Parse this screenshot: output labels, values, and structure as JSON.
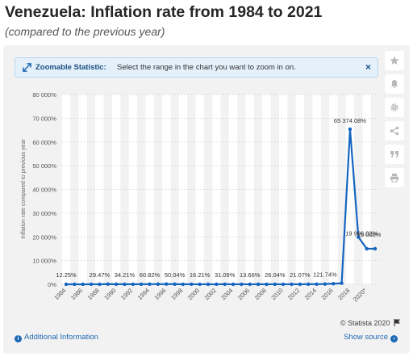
{
  "page": {
    "title": "Venezuela: Inflation rate from 1984 to 2021",
    "subtitle": "(compared to the previous year)"
  },
  "zoom_bar": {
    "label": "Zoomable Statistic:",
    "text": "Select the range in the chart you want to zoom in on.",
    "close": "×"
  },
  "side_tools": [
    "star-icon",
    "bell-icon",
    "gear-icon",
    "share-icon",
    "quote-icon",
    "print-icon"
  ],
  "footer": {
    "additional_info": "Additional Information",
    "show_source": "Show source",
    "credit": "© Statista 2020"
  },
  "colors": {
    "series": "#1565c0",
    "card": "#f2f2f2",
    "stripe": "#ffffff",
    "link": "#1c67b3"
  },
  "chart_data": {
    "type": "line",
    "title": "",
    "xlabel": "",
    "ylabel": "Inflation rate compared to previous year",
    "ylim": [
      0,
      80000
    ],
    "yticks": [
      0,
      10000,
      20000,
      30000,
      40000,
      50000,
      60000,
      70000,
      80000
    ],
    "ytick_labels": [
      "0%",
      "10 000%",
      "20 000%",
      "30 000%",
      "40 000%",
      "50 000%",
      "60 000%",
      "70 000%",
      "80 000%"
    ],
    "xtick_labels": [
      "1984",
      "1986",
      "1988",
      "1990",
      "1992",
      "1994",
      "1996",
      "1998",
      "2000",
      "2002",
      "2004",
      "2006",
      "2008",
      "2010",
      "2012",
      "2014",
      "2016",
      "2018",
      "2020*"
    ],
    "grid": true,
    "series": [
      {
        "x": [
          1984,
          1985,
          1986,
          1987,
          1988,
          1989,
          1990,
          1991,
          1992,
          1993,
          1994,
          1995,
          1996,
          1997,
          1998,
          1999,
          2000,
          2001,
          2002,
          2003,
          2004,
          2005,
          2006,
          2007,
          2008,
          2009,
          2010,
          2011,
          2012,
          2013,
          2014,
          2015,
          2016,
          2017,
          2018,
          2019,
          2020,
          2021
        ],
        "y": [
          12.25,
          11.4,
          11.5,
          28.1,
          29.47,
          84.5,
          40.7,
          34.21,
          31.4,
          38.1,
          60.82,
          59.9,
          99.9,
          50.04,
          35.8,
          23.6,
          16.21,
          12.5,
          22.4,
          31.09,
          21.7,
          16.0,
          13.66,
          18.7,
          31.4,
          26.0,
          28.2,
          26.04,
          21.1,
          40.6,
          62.2,
          121.74,
          254.9,
          438.1,
          65374.08,
          19906.02,
          15000,
          15000
        ]
      }
    ],
    "data_labels": [
      {
        "x": 1984,
        "text": "12.25%"
      },
      {
        "x": 1988,
        "text": "29.47%"
      },
      {
        "x": 1991,
        "text": "34.21%"
      },
      {
        "x": 1994,
        "text": "60.82%"
      },
      {
        "x": 1997,
        "text": "50.04%"
      },
      {
        "x": 2000,
        "text": "16.21%"
      },
      {
        "x": 2003,
        "text": "31.09%"
      },
      {
        "x": 2006,
        "text": "13.66%"
      },
      {
        "x": 2009,
        "text": "26.04%"
      },
      {
        "x": 2012,
        "text": "21.07%"
      },
      {
        "x": 2015,
        "text": "121.74%"
      },
      {
        "x": 2018,
        "text": "65 374.08%"
      },
      {
        "x": 2019,
        "text": "19 906.02%"
      },
      {
        "x": 2020,
        "text": "15 000%"
      }
    ]
  }
}
